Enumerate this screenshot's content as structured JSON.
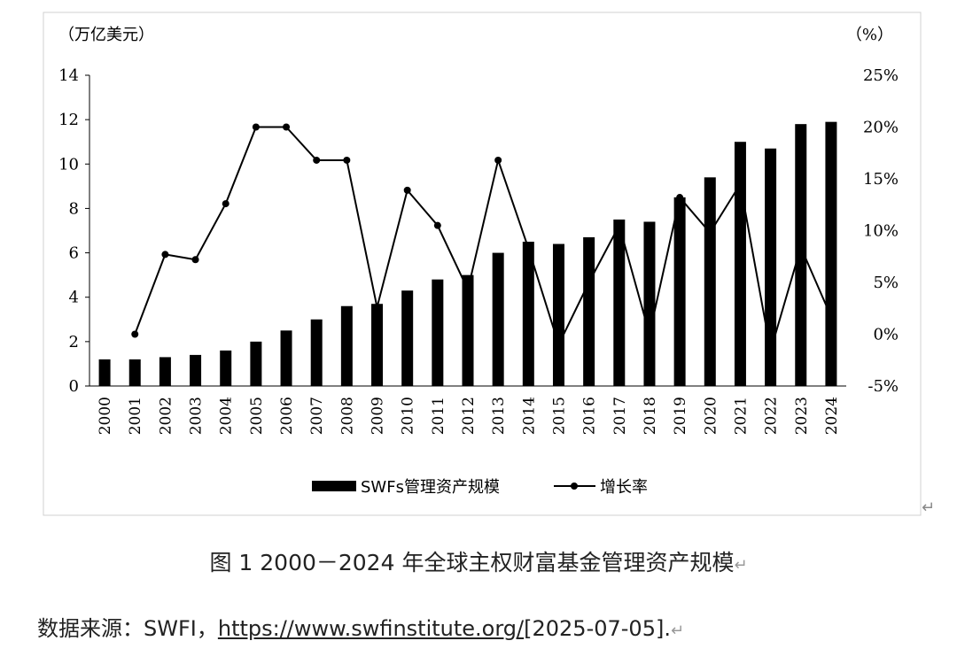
{
  "chart_data": {
    "type": "bar",
    "categories": [
      "2000",
      "2001",
      "2002",
      "2003",
      "2004",
      "2005",
      "2006",
      "2007",
      "2008",
      "2009",
      "2010",
      "2011",
      "2012",
      "2013",
      "2014",
      "2015",
      "2016",
      "2017",
      "2018",
      "2019",
      "2020",
      "2021",
      "2022",
      "2023",
      "2024"
    ],
    "y_left_unit": "（万亿美元）",
    "y_right_unit": "（%）",
    "ylim_left": [
      0,
      14
    ],
    "yticks_left": [
      "0",
      "2",
      "4",
      "6",
      "8",
      "10",
      "12",
      "14"
    ],
    "ylim_right": [
      -5,
      25
    ],
    "yticks_right": [
      "-5%",
      "0%",
      "5%",
      "10%",
      "15%",
      "20%",
      "25%"
    ],
    "grid": false,
    "legend_position": "bottom",
    "series": [
      {
        "name": "SWFs管理资产规模",
        "type": "bar",
        "axis": "left",
        "color": "#000000",
        "values": [
          1.2,
          1.2,
          1.3,
          1.4,
          1.6,
          2.0,
          2.5,
          3.0,
          3.6,
          3.7,
          4.3,
          4.8,
          5.0,
          6.0,
          6.5,
          6.4,
          6.7,
          7.5,
          7.4,
          8.5,
          9.4,
          11.0,
          10.7,
          11.8,
          11.9
        ]
      },
      {
        "name": "增长率",
        "type": "line",
        "axis": "right",
        "color": "#000000",
        "values": [
          null,
          0,
          7.7,
          7.2,
          12.6,
          20.0,
          20.0,
          16.8,
          16.8,
          2.6,
          13.9,
          10.5,
          4.3,
          16.8,
          8.3,
          -1.0,
          5.0,
          10.5,
          0,
          13.2,
          9.8,
          14.5,
          -1.6,
          8.4,
          1.7
        ]
      }
    ]
  },
  "legend": {
    "bars_label": "SWFs管理资产规模",
    "line_label": "增长率"
  },
  "caption": {
    "text": "图 1 2000－2024 年全球主权财富基金管理资产规模",
    "mark": "↵"
  },
  "source": {
    "prefix": "数据来源：SWFI，",
    "link": "https://www.swfinstitute.org/",
    "suffix": "[2025-07-05].",
    "mark": "↵"
  },
  "frame_mark": "↵"
}
